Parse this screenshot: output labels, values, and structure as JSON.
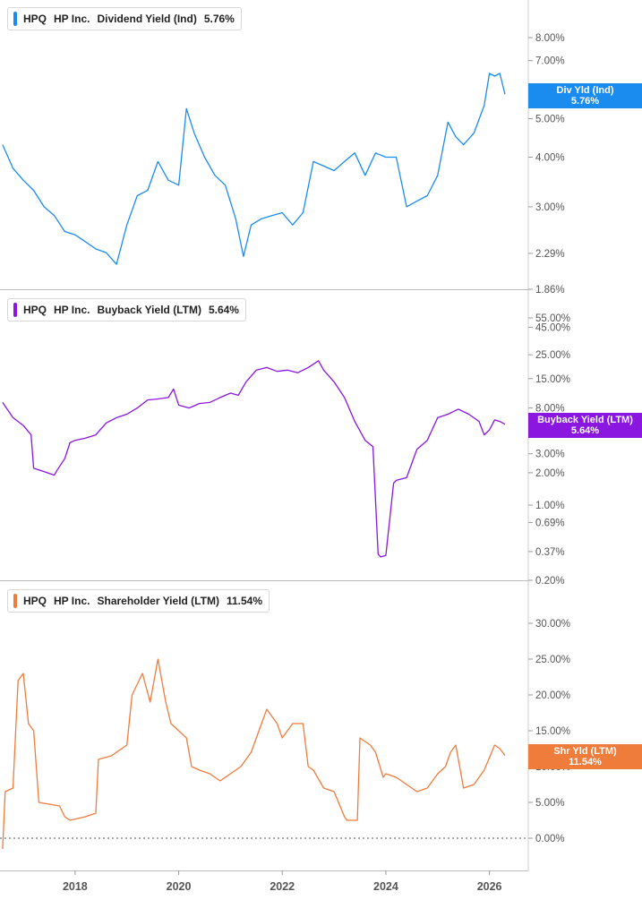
{
  "chart_data": [
    {
      "type": "line",
      "ticker": "HPQ",
      "company": "HP Inc.",
      "metric": "Dividend Yield (Ind)",
      "last_value": "5.76%",
      "flag_label": "Div Yld (Ind)",
      "color": "#1a8cf0",
      "scale": "log",
      "y_ticks": [
        "8.00%",
        "7.00%",
        "5.00%",
        "4.00%",
        "3.00%",
        "2.29%",
        "1.86%"
      ],
      "y_tick_values": [
        8.0,
        7.0,
        5.0,
        4.0,
        3.0,
        2.29,
        1.86
      ],
      "x": [
        2016.6,
        2016.8,
        2017.0,
        2017.2,
        2017.4,
        2017.6,
        2017.8,
        2018.0,
        2018.2,
        2018.4,
        2018.6,
        2018.8,
        2019.0,
        2019.2,
        2019.4,
        2019.6,
        2019.8,
        2020.0,
        2020.15,
        2020.3,
        2020.5,
        2020.7,
        2020.9,
        2021.1,
        2021.25,
        2021.4,
        2021.6,
        2021.8,
        2022.0,
        2022.2,
        2022.4,
        2022.6,
        2022.8,
        2023.0,
        2023.2,
        2023.4,
        2023.6,
        2023.8,
        2024.0,
        2024.2,
        2024.4,
        2024.6,
        2024.8,
        2025.0,
        2025.2,
        2025.35,
        2025.5,
        2025.7,
        2025.9,
        2026.0,
        2026.1,
        2026.2,
        2026.3
      ],
      "y": [
        4.3,
        3.75,
        3.5,
        3.3,
        3.0,
        2.85,
        2.6,
        2.55,
        2.45,
        2.35,
        2.3,
        2.15,
        2.7,
        3.2,
        3.3,
        3.9,
        3.5,
        3.4,
        5.3,
        4.6,
        4.0,
        3.6,
        3.4,
        2.8,
        2.25,
        2.7,
        2.8,
        2.85,
        2.9,
        2.7,
        2.9,
        3.9,
        3.8,
        3.7,
        3.9,
        4.1,
        3.6,
        4.1,
        4.0,
        4.0,
        3.0,
        3.1,
        3.2,
        3.6,
        4.9,
        4.5,
        4.3,
        4.6,
        5.4,
        6.5,
        6.4,
        6.5,
        5.76
      ]
    },
    {
      "type": "line",
      "ticker": "HPQ",
      "company": "HP Inc.",
      "metric": "Buyback Yield (LTM)",
      "last_value": "5.64%",
      "flag_label": "Buyback Yield (LTM)",
      "color": "#8a16e0",
      "scale": "log",
      "y_ticks": [
        "55.00%",
        "45.00%",
        "25.00%",
        "15.00%",
        "8.00%",
        "3.00%",
        "2.00%",
        "1.00%",
        "0.69%",
        "0.37%",
        "0.20%"
      ],
      "y_tick_values": [
        55,
        45,
        25,
        15,
        8,
        3,
        2,
        1,
        0.69,
        0.37,
        0.2
      ],
      "x": [
        2016.6,
        2016.8,
        2017.0,
        2017.15,
        2017.2,
        2017.4,
        2017.6,
        2017.65,
        2017.8,
        2017.9,
        2018.0,
        2018.2,
        2018.4,
        2018.6,
        2018.8,
        2019.0,
        2019.2,
        2019.4,
        2019.6,
        2019.8,
        2019.9,
        2020.0,
        2020.2,
        2020.4,
        2020.6,
        2020.8,
        2021.0,
        2021.15,
        2021.3,
        2021.5,
        2021.7,
        2021.9,
        2022.1,
        2022.3,
        2022.5,
        2022.7,
        2022.8,
        2023.0,
        2023.2,
        2023.4,
        2023.6,
        2023.75,
        2023.85,
        2023.9,
        2024.0,
        2024.15,
        2024.2,
        2024.4,
        2024.6,
        2024.8,
        2025.0,
        2025.2,
        2025.4,
        2025.6,
        2025.8,
        2025.9,
        2026.0,
        2026.1,
        2026.2,
        2026.3
      ],
      "y": [
        9.0,
        6.5,
        5.5,
        4.5,
        2.2,
        2.05,
        1.9,
        2.1,
        2.7,
        3.8,
        4.0,
        4.2,
        4.5,
        5.8,
        6.5,
        7.0,
        8.0,
        9.5,
        9.7,
        10.0,
        12.0,
        8.5,
        8.0,
        8.8,
        9.0,
        10.0,
        11.0,
        10.5,
        14.0,
        18.0,
        19.0,
        17.5,
        18.0,
        17.0,
        19.0,
        22.0,
        18.0,
        14.0,
        10.0,
        6.0,
        4.0,
        3.5,
        0.35,
        0.33,
        0.34,
        1.6,
        1.7,
        1.8,
        3.3,
        4.0,
        6.5,
        7.0,
        7.8,
        7.0,
        6.0,
        4.5,
        5.0,
        6.2,
        6.0,
        5.64
      ]
    },
    {
      "type": "line",
      "ticker": "HPQ",
      "company": "HP Inc.",
      "metric": "Shareholder Yield (LTM)",
      "last_value": "11.54%",
      "flag_label": "Shr Yld (LTM)",
      "color": "#f07c3c",
      "scale": "linear",
      "ylim": [
        -1.5,
        33
      ],
      "y_ticks": [
        "30.00%",
        "25.00%",
        "20.00%",
        "15.00%",
        "10.00%",
        "5.00%",
        "0.00%"
      ],
      "y_tick_values": [
        30,
        25,
        20,
        15,
        10,
        5,
        0
      ],
      "zero_line": true,
      "x": [
        2016.6,
        2016.65,
        2016.8,
        2016.9,
        2017.0,
        2017.1,
        2017.2,
        2017.3,
        2017.7,
        2017.8,
        2017.9,
        2018.2,
        2018.4,
        2018.45,
        2018.7,
        2019.0,
        2019.1,
        2019.3,
        2019.45,
        2019.6,
        2019.75,
        2019.85,
        2020.0,
        2020.15,
        2020.25,
        2020.4,
        2020.6,
        2020.8,
        2021.0,
        2021.2,
        2021.4,
        2021.55,
        2021.7,
        2021.9,
        2022.0,
        2022.2,
        2022.4,
        2022.5,
        2022.6,
        2022.8,
        2023.0,
        2023.2,
        2023.25,
        2023.45,
        2023.5,
        2023.7,
        2023.8,
        2023.95,
        2024.0,
        2024.2,
        2024.4,
        2024.6,
        2024.8,
        2025.0,
        2025.15,
        2025.25,
        2025.35,
        2025.5,
        2025.7,
        2025.9,
        2026.1,
        2026.2,
        2026.3
      ],
      "y": [
        -1.5,
        6.5,
        7.0,
        22.0,
        23.0,
        16.0,
        15.0,
        5.0,
        4.5,
        3.0,
        2.5,
        3.0,
        3.5,
        11.0,
        11.5,
        13.0,
        20.0,
        23.0,
        19.0,
        25.0,
        19.0,
        16.0,
        15.0,
        14.0,
        10.0,
        9.5,
        9.0,
        8.0,
        9.0,
        10.0,
        12.0,
        15.0,
        18.0,
        16.0,
        14.0,
        16.0,
        16.0,
        10.0,
        9.5,
        7.0,
        6.5,
        3.0,
        2.5,
        2.5,
        14.0,
        13.0,
        12.0,
        8.5,
        9.0,
        8.5,
        7.5,
        6.5,
        7.0,
        9.0,
        10.0,
        12.0,
        13.0,
        7.0,
        7.5,
        9.5,
        13.0,
        12.5,
        11.54
      ]
    }
  ],
  "x_axis": {
    "ticks": [
      "2018",
      "2020",
      "2022",
      "2024",
      "2026"
    ],
    "tick_values": [
      2018,
      2020,
      2022,
      2024,
      2026
    ],
    "range": [
      2016.55,
      2026.75
    ]
  }
}
